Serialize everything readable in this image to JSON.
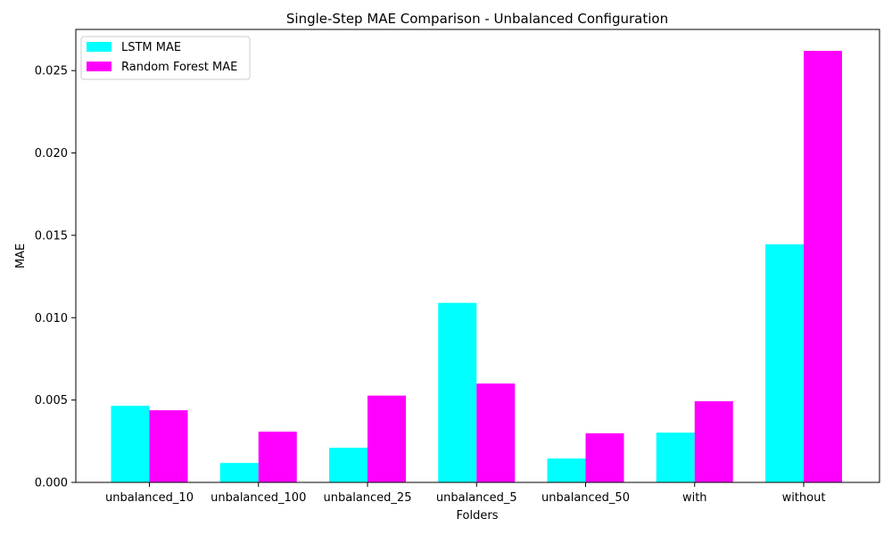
{
  "chart_data": {
    "type": "bar",
    "title": "Single-Step MAE Comparison - Unbalanced Configuration",
    "xlabel": "Folders",
    "ylabel": "MAE",
    "categories": [
      "unbalanced_10",
      "unbalanced_100",
      "unbalanced_25",
      "unbalanced_5",
      "unbalanced_50",
      "with",
      "without"
    ],
    "series": [
      {
        "name": "LSTM MAE",
        "color": "#00ffff",
        "values": [
          0.00465,
          0.00118,
          0.0021,
          0.0109,
          0.00145,
          0.00302,
          0.01445
        ]
      },
      {
        "name": "Random Forest MAE",
        "color": "#ff00ff",
        "values": [
          0.00438,
          0.00308,
          0.00527,
          0.006,
          0.00298,
          0.00493,
          0.0262
        ]
      }
    ],
    "ylim": [
      0,
      0.0275
    ],
    "yticks": [
      "0.000",
      "0.005",
      "0.010",
      "0.015",
      "0.020",
      "0.025"
    ],
    "legend": "top-left",
    "grid": false
  }
}
